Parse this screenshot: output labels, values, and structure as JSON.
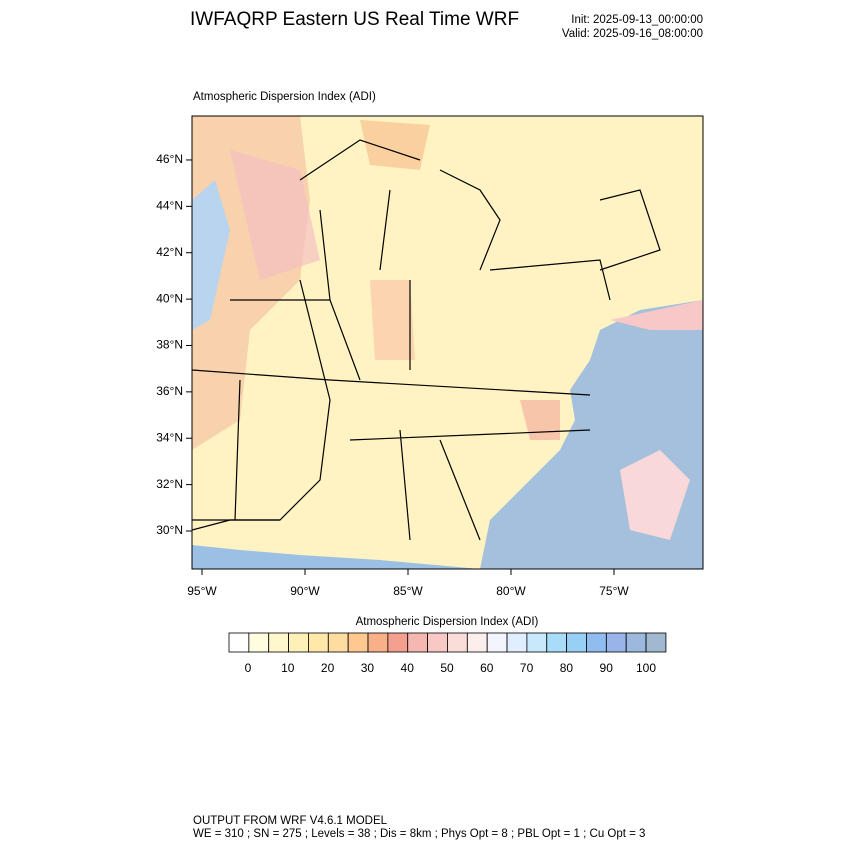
{
  "header": {
    "title": "IWFAQRP Eastern US Real Time WRF",
    "init": "Init: 2025-09-13_00:00:00",
    "valid": "Valid: 2025-09-16_08:00:00"
  },
  "map": {
    "subtitle": "Atmospheric Dispersion Index   (ADI)",
    "lat_ticks": [
      {
        "value": 30,
        "label": "30°N"
      },
      {
        "value": 32,
        "label": "32°N"
      },
      {
        "value": 34,
        "label": "34°N"
      },
      {
        "value": 36,
        "label": "36°N"
      },
      {
        "value": 38,
        "label": "38°N"
      },
      {
        "value": 40,
        "label": "40°N"
      },
      {
        "value": 42,
        "label": "42°N"
      },
      {
        "value": 44,
        "label": "44°N"
      },
      {
        "value": 46,
        "label": "46°N"
      }
    ],
    "lon_ticks": [
      {
        "value": -95,
        "label": "95°W"
      },
      {
        "value": -90,
        "label": "90°W"
      },
      {
        "value": -85,
        "label": "85°W"
      },
      {
        "value": -80,
        "label": "80°W"
      },
      {
        "value": -75,
        "label": "75°W"
      }
    ]
  },
  "colorbar": {
    "title": "Atmospheric Dispersion Index  (ADI)",
    "ticks": [
      0,
      10,
      20,
      30,
      40,
      50,
      60,
      70,
      80,
      90,
      100
    ],
    "colors": [
      "#ffffff",
      "#fffde0",
      "#fff8cc",
      "#fff0b8",
      "#ffe8a8",
      "#ffdca0",
      "#ffc890",
      "#f8b088",
      "#f4a090",
      "#f5b8b0",
      "#f8c8c4",
      "#fadcd8",
      "#fdeeee",
      "#f4f4ff",
      "#e0eeff",
      "#c8e8fc",
      "#a8dcf8",
      "#98d0f4",
      "#90bcf0",
      "#98b4e8",
      "#9cb8dc",
      "#a0b8d0"
    ]
  },
  "footer": {
    "line1": "OUTPUT FROM WRF V4.6.1 MODEL",
    "line2": "WE = 310 ; SN = 275 ; Levels = 38 ; Dis = 8km ; Phys Opt = 8 ; PBL Opt = 1 ; Cu Opt = 3"
  }
}
